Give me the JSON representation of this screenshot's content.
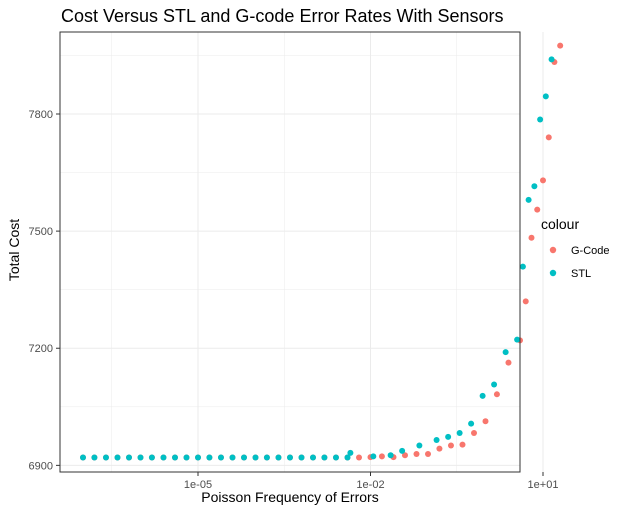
{
  "chart_data": {
    "type": "scatter",
    "title": "Cost Versus STL and G-code Error Rates With Sensors",
    "xlabel": "Poisson Frequency of Errors",
    "ylabel": "Total Cost",
    "x_scale": "log10",
    "x_ticks": [
      {
        "value": 1e-05,
        "label": "1e-05"
      },
      {
        "value": 0.01,
        "label": "1e-02"
      },
      {
        "value": 10,
        "label": "1e+01"
      }
    ],
    "y_ticks": [
      {
        "value": 6900,
        "label": "6900"
      },
      {
        "value": 7200,
        "label": "7200"
      },
      {
        "value": 7500,
        "label": "7500"
      },
      {
        "value": 7800,
        "label": "7800"
      }
    ],
    "xlim_log10": [
      -7.4,
      0.6
    ],
    "ylim": [
      6883,
      8010
    ],
    "grid": true,
    "legend": {
      "title": "colour",
      "position": "right"
    },
    "series": [
      {
        "name": "G-Code",
        "color": "#F8766D",
        "points": [
          [
            1e-07,
            6920
          ],
          [
            1.58e-07,
            6920
          ],
          [
            2.51e-07,
            6920
          ],
          [
            3.98e-07,
            6920
          ],
          [
            6.31e-07,
            6920
          ],
          [
            1e-06,
            6920
          ],
          [
            1.58e-06,
            6920
          ],
          [
            2.51e-06,
            6920
          ],
          [
            3.98e-06,
            6920
          ],
          [
            6.31e-06,
            6920
          ],
          [
            1e-05,
            6920
          ],
          [
            1.58e-05,
            6920
          ],
          [
            2.51e-05,
            6920
          ],
          [
            3.98e-05,
            6920
          ],
          [
            6.31e-05,
            6920
          ],
          [
            0.0001,
            6920
          ],
          [
            0.000158,
            6920
          ],
          [
            0.000251,
            6920
          ],
          [
            0.000398,
            6920
          ],
          [
            0.000631,
            6920
          ],
          [
            0.001,
            6920
          ],
          [
            0.00158,
            6920
          ],
          [
            0.00251,
            6920
          ],
          [
            0.00398,
            6920
          ],
          [
            0.00631,
            6920
          ],
          [
            0.01,
            6921
          ],
          [
            0.0158,
            6923
          ],
          [
            0.0251,
            6921
          ],
          [
            0.0398,
            6926
          ],
          [
            0.0631,
            6929
          ],
          [
            0.1,
            6929
          ],
          [
            0.158,
            6943
          ],
          [
            0.251,
            6951
          ],
          [
            0.398,
            6953
          ],
          [
            0.631,
            6983
          ],
          [
            1.0,
            7013
          ],
          [
            1.58,
            7082
          ],
          [
            2.51,
            7163
          ],
          [
            3.98,
            7220
          ],
          [
            5.01,
            7320
          ],
          [
            6.31,
            7483
          ],
          [
            7.94,
            7555
          ],
          [
            10.0,
            7630
          ],
          [
            12.6,
            7740
          ],
          [
            15.8,
            7933
          ],
          [
            19.9,
            7975
          ]
        ]
      },
      {
        "name": "STL",
        "color": "#00BFC4",
        "points": [
          [
            1e-07,
            6920
          ],
          [
            1.58e-07,
            6920
          ],
          [
            2.51e-07,
            6920
          ],
          [
            3.98e-07,
            6920
          ],
          [
            6.31e-07,
            6920
          ],
          [
            1e-06,
            6920
          ],
          [
            1.58e-06,
            6920
          ],
          [
            2.51e-06,
            6920
          ],
          [
            3.98e-06,
            6920
          ],
          [
            6.31e-06,
            6920
          ],
          [
            1e-05,
            6920
          ],
          [
            1.58e-05,
            6920
          ],
          [
            2.51e-05,
            6920
          ],
          [
            3.98e-05,
            6920
          ],
          [
            6.31e-05,
            6920
          ],
          [
            0.0001,
            6920
          ],
          [
            0.000158,
            6920
          ],
          [
            0.000251,
            6920
          ],
          [
            0.000398,
            6920
          ],
          [
            0.000631,
            6920
          ],
          [
            0.001,
            6920
          ],
          [
            0.00158,
            6920
          ],
          [
            0.00251,
            6920
          ],
          [
            0.00398,
            6920
          ],
          [
            0.00447,
            6932
          ],
          [
            0.0112,
            6923
          ],
          [
            0.0224,
            6926
          ],
          [
            0.0355,
            6937
          ],
          [
            0.0708,
            6951
          ],
          [
            0.141,
            6965
          ],
          [
            0.224,
            6973
          ],
          [
            0.355,
            6983
          ],
          [
            0.562,
            7007
          ],
          [
            0.891,
            7078
          ],
          [
            1.41,
            7107
          ],
          [
            2.24,
            7190
          ],
          [
            3.55,
            7222
          ],
          [
            4.47,
            7409
          ],
          [
            5.62,
            7580
          ],
          [
            7.08,
            7615
          ],
          [
            8.91,
            7786
          ],
          [
            11.2,
            7845
          ],
          [
            14.1,
            7940
          ]
        ]
      }
    ]
  }
}
